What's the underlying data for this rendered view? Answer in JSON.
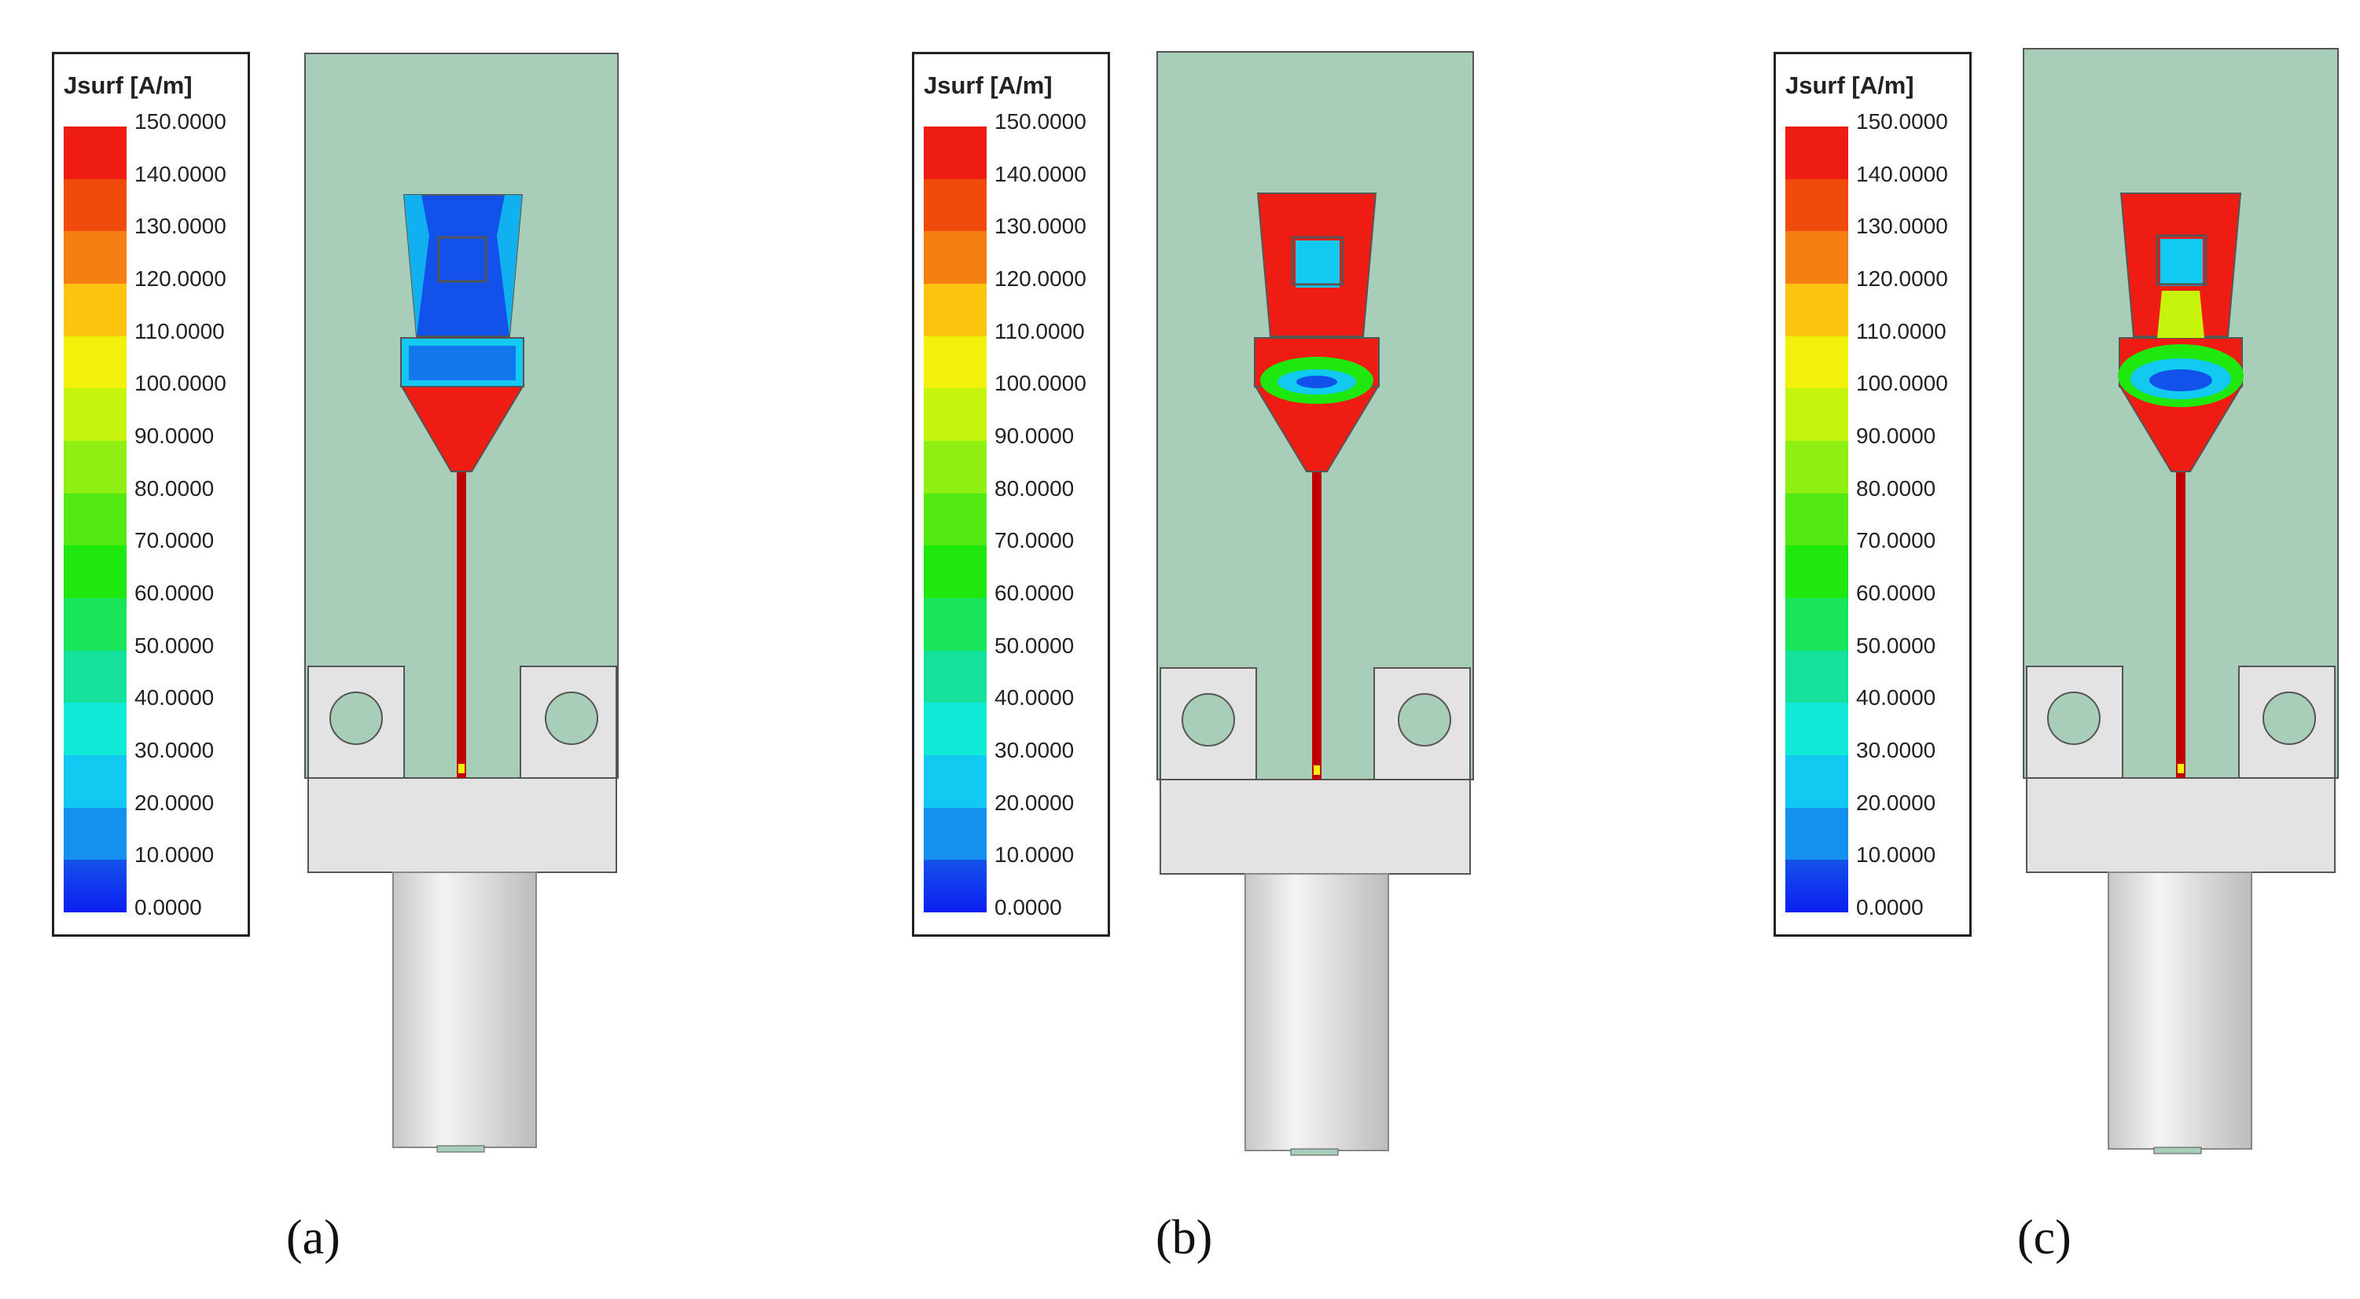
{
  "colorbar": {
    "title": "Jsurf [A/m]",
    "labels": [
      "150.0000",
      "140.0000",
      "130.0000",
      "120.0000",
      "110.0000",
      "100.0000",
      "90.0000",
      "80.0000",
      "70.0000",
      "60.0000",
      "50.0000",
      "40.0000",
      "30.0000",
      "20.0000",
      "10.0000",
      "0.0000"
    ],
    "colors": [
      "#ee1c12",
      "#f04a0c",
      "#f57f12",
      "#fcc40e",
      "#f3f00a",
      "#c7f40c",
      "#8def12",
      "#52ea10",
      "#1fe80e",
      "#18e55a",
      "#14e29c",
      "#10ead6",
      "#12c9f2",
      "#1490ef",
      "#1352ea"
    ],
    "min_color": "#0b1ff0"
  },
  "colors": {
    "substrate": "#a8cdb8",
    "connector": "#e3e3e3",
    "trace": "#c00000",
    "outline": "#555555"
  },
  "panels": [
    {
      "caption": "(a)"
    },
    {
      "caption": "(b)"
    },
    {
      "caption": "(c)"
    }
  ]
}
